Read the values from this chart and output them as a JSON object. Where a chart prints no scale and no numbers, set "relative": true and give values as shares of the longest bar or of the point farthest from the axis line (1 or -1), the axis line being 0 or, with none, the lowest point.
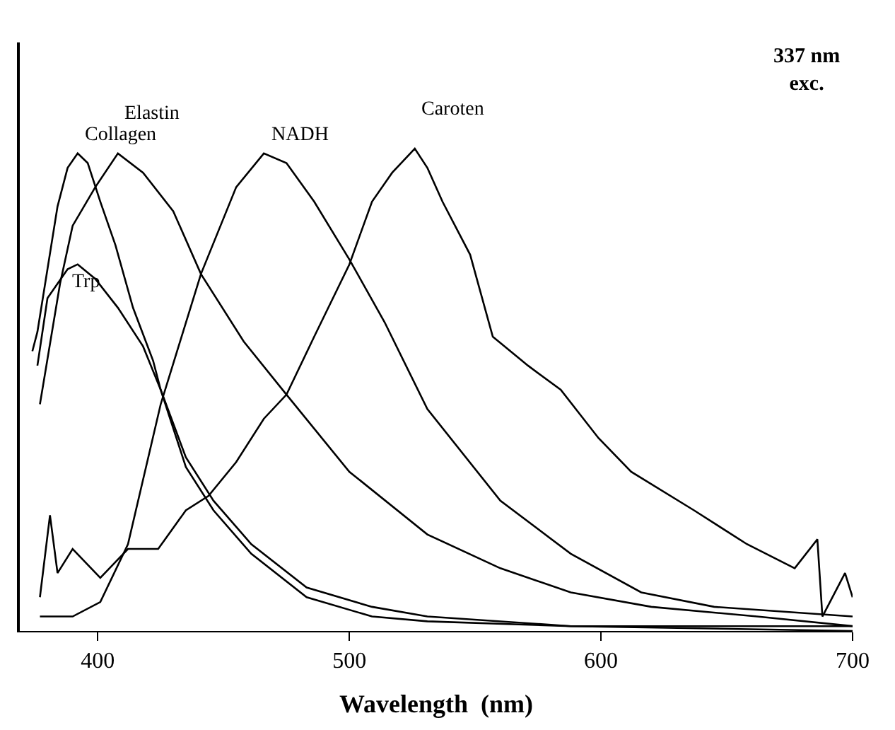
{
  "chart_data": {
    "type": "line",
    "relative": true,
    "xlabel": "Wavelength  (nm)",
    "xlim": [
      369,
      700
    ],
    "xticks": [
      400,
      500,
      600,
      700
    ],
    "legend": false,
    "marker": "none",
    "line_style": "solid",
    "annotations": [
      "337 nm\nexc."
    ],
    "series": [
      {
        "name": "Collagen",
        "color": "#000000",
        "x": [
          374,
          376,
          380,
          384,
          388,
          392,
          396,
          401,
          407,
          414,
          422,
          425,
          435,
          446,
          461,
          483,
          509,
          531,
          588,
          700
        ],
        "values": [
          0.58,
          0.62,
          0.75,
          0.88,
          0.96,
          0.99,
          0.97,
          0.89,
          0.8,
          0.67,
          0.56,
          0.5,
          0.36,
          0.27,
          0.18,
          0.09,
          0.05,
          0.03,
          0.01,
          0.01
        ]
      },
      {
        "name": "Elastin",
        "color": "#000000",
        "x": [
          377,
          385,
          390,
          399,
          408,
          418,
          430,
          441,
          458,
          475,
          500,
          531,
          560,
          588,
          620,
          662,
          700
        ],
        "values": [
          0.47,
          0.72,
          0.84,
          0.92,
          0.99,
          0.95,
          0.87,
          0.74,
          0.6,
          0.49,
          0.33,
          0.2,
          0.13,
          0.08,
          0.05,
          0.03,
          0.01
        ]
      },
      {
        "name": "NADH",
        "color": "#000000",
        "x": [
          377,
          390,
          401,
          412,
          425,
          441,
          455,
          466,
          475,
          486,
          500,
          514,
          531,
          560,
          588,
          616,
          645,
          700
        ],
        "values": [
          0.03,
          0.03,
          0.06,
          0.18,
          0.47,
          0.74,
          0.92,
          0.99,
          0.97,
          0.89,
          0.77,
          0.64,
          0.46,
          0.27,
          0.16,
          0.08,
          0.05,
          0.03
        ]
      },
      {
        "name": "Caroten",
        "color": "#000000",
        "x": [
          377,
          381,
          384,
          390,
          401,
          412,
          424,
          435,
          444,
          455,
          466,
          475,
          486,
          500,
          509,
          517,
          526,
          531,
          537,
          548,
          557,
          571,
          584,
          599,
          612,
          637,
          658,
          677,
          686,
          688,
          697,
          700
        ],
        "values": [
          0.07,
          0.24,
          0.12,
          0.17,
          0.11,
          0.17,
          0.17,
          0.25,
          0.28,
          0.35,
          0.44,
          0.49,
          0.61,
          0.76,
          0.89,
          0.95,
          1.0,
          0.96,
          0.89,
          0.78,
          0.61,
          0.55,
          0.5,
          0.4,
          0.33,
          0.25,
          0.18,
          0.13,
          0.19,
          0.03,
          0.12,
          0.07
        ]
      },
      {
        "name": "Trp",
        "color": "#000000",
        "x": [
          376,
          380,
          388,
          392,
          399,
          408,
          418,
          425,
          435,
          446,
          461,
          483,
          509,
          531,
          588,
          700
        ],
        "values": [
          0.55,
          0.69,
          0.75,
          0.76,
          0.73,
          0.67,
          0.59,
          0.5,
          0.34,
          0.25,
          0.16,
          0.07,
          0.03,
          0.02,
          0.01,
          0.0
        ]
      }
    ]
  }
}
